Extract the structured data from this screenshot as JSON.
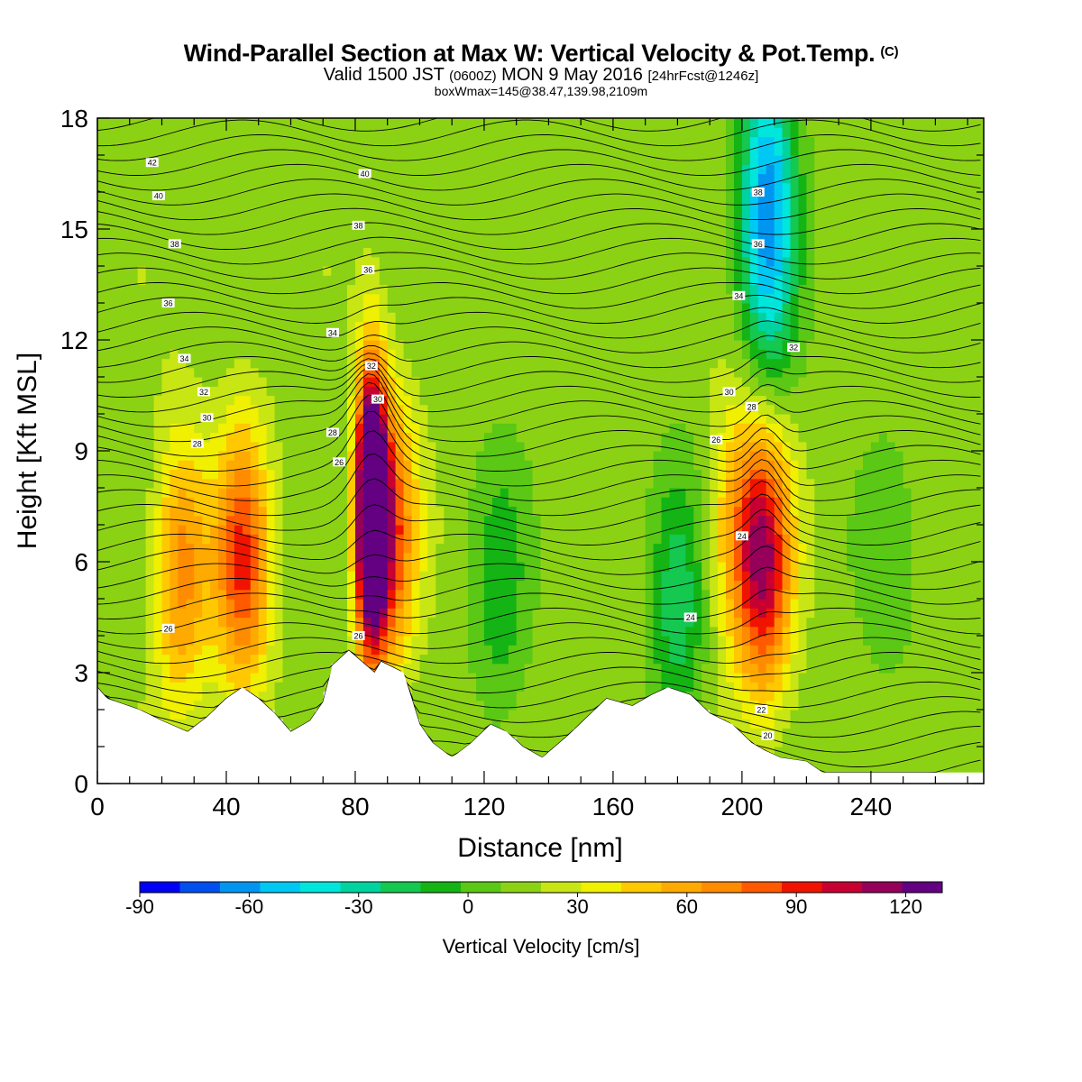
{
  "header": {
    "title": "Wind-Parallel Section at Max W: Vertical Velocity & Pot.Temp.",
    "copyright_mark": "(C)",
    "valid_prefix": "Valid 1500 JST",
    "utc_time": "(0600Z)",
    "valid_date": "MON 9 May 2016",
    "forecast_info": "[24hrFcst@1246z]",
    "boxinfo": "boxWmax=145@38.47,139.98,2109m"
  },
  "chart_data": {
    "type": "heatmap",
    "xlabel": "Distance [nm]",
    "ylabel": "Height [Kft MSL]",
    "xlim": [
      0,
      275
    ],
    "ylim": [
      0,
      18
    ],
    "xticks": [
      "0",
      "40",
      "80",
      "120",
      "160",
      "200",
      "240"
    ],
    "yticks": [
      "0",
      "3",
      "6",
      "9",
      "12",
      "15",
      "18"
    ],
    "colorbar": {
      "label": "Vertical Velocity [cm/s]",
      "range": [
        -90,
        130
      ],
      "step": 10,
      "tick_labels": [
        "-90",
        "-60",
        "-30",
        "0",
        "30",
        "60",
        "90",
        "120"
      ],
      "colors": [
        "#0000f5",
        "#0050f0",
        "#0096f0",
        "#00c8f5",
        "#00e6dc",
        "#00d2a0",
        "#14c850",
        "#14b414",
        "#5ac814",
        "#8cd214",
        "#c8e614",
        "#f0f000",
        "#ffc800",
        "#ffaa00",
        "#ff8c00",
        "#ff5a00",
        "#f01400",
        "#c80032",
        "#96005a",
        "#640082"
      ]
    },
    "terrain_height_kft": [
      [
        0,
        2.6
      ],
      [
        3,
        2.3
      ],
      [
        13,
        2.0
      ],
      [
        20,
        1.7
      ],
      [
        28,
        1.4
      ],
      [
        34,
        1.8
      ],
      [
        40,
        2.3
      ],
      [
        45,
        2.6
      ],
      [
        50,
        2.3
      ],
      [
        55,
        1.9
      ],
      [
        60,
        1.4
      ],
      [
        66,
        1.7
      ],
      [
        70,
        2.2
      ],
      [
        73,
        3.2
      ],
      [
        78,
        3.6
      ],
      [
        82,
        3.3
      ],
      [
        86,
        3.0
      ],
      [
        88,
        3.3
      ],
      [
        95,
        3.0
      ],
      [
        100,
        1.6
      ],
      [
        104,
        1.1
      ],
      [
        110,
        0.7
      ],
      [
        116,
        1.1
      ],
      [
        122,
        1.6
      ],
      [
        127,
        1.4
      ],
      [
        132,
        1.0
      ],
      [
        138,
        0.7
      ],
      [
        146,
        1.3
      ],
      [
        152,
        1.8
      ],
      [
        158,
        2.3
      ],
      [
        166,
        2.1
      ],
      [
        172,
        2.4
      ],
      [
        177,
        2.6
      ],
      [
        184,
        2.4
      ],
      [
        190,
        1.9
      ],
      [
        197,
        1.6
      ],
      [
        203,
        1.1
      ],
      [
        207,
        0.9
      ],
      [
        212,
        0.7
      ],
      [
        220,
        0.6
      ],
      [
        225,
        0.3
      ],
      [
        275,
        0.3
      ]
    ],
    "vertical_velocity_cores": [
      {
        "x": 85,
        "z": 7.5,
        "w": 145
      },
      {
        "x": 90,
        "z": 6.8,
        "w": 70
      },
      {
        "x": 45,
        "z": 6.0,
        "w": 65
      },
      {
        "x": 26,
        "z": 5.8,
        "w": 50
      },
      {
        "x": 207,
        "z": 6.0,
        "w": 80
      },
      {
        "x": 198,
        "z": 7.0,
        "w": 30
      },
      {
        "x": 180,
        "z": 4.5,
        "w": -30
      },
      {
        "x": 208,
        "z": 15.5,
        "w": -70
      },
      {
        "x": 125,
        "z": 5.0,
        "w": -20
      },
      {
        "x": 245,
        "z": 5.5,
        "w": -10
      }
    ],
    "theta_labels_c": [
      {
        "x": 17,
        "z": 16.8,
        "text": "42"
      },
      {
        "x": 19,
        "z": 15.9,
        "text": "40"
      },
      {
        "x": 24,
        "z": 14.6,
        "text": "38"
      },
      {
        "x": 22,
        "z": 13.0,
        "text": "36"
      },
      {
        "x": 27,
        "z": 11.5,
        "text": "34"
      },
      {
        "x": 33,
        "z": 10.6,
        "text": "32"
      },
      {
        "x": 34,
        "z": 9.9,
        "text": "30"
      },
      {
        "x": 31,
        "z": 9.2,
        "text": "28"
      },
      {
        "x": 22,
        "z": 4.2,
        "text": "26"
      },
      {
        "x": 81,
        "z": 4.0,
        "text": "26"
      },
      {
        "x": 83,
        "z": 16.5,
        "text": "40"
      },
      {
        "x": 81,
        "z": 15.1,
        "text": "38"
      },
      {
        "x": 84,
        "z": 13.9,
        "text": "36"
      },
      {
        "x": 73,
        "z": 12.2,
        "text": "34"
      },
      {
        "x": 85,
        "z": 11.3,
        "text": "32"
      },
      {
        "x": 87,
        "z": 10.4,
        "text": "30"
      },
      {
        "x": 73,
        "z": 9.5,
        "text": "28"
      },
      {
        "x": 75,
        "z": 8.7,
        "text": "26"
      },
      {
        "x": 205,
        "z": 14.6,
        "text": "36"
      },
      {
        "x": 205,
        "z": 16.0,
        "text": "38"
      },
      {
        "x": 199,
        "z": 13.2,
        "text": "34"
      },
      {
        "x": 216,
        "z": 11.8,
        "text": "32"
      },
      {
        "x": 196,
        "z": 10.6,
        "text": "30"
      },
      {
        "x": 203,
        "z": 10.2,
        "text": "28"
      },
      {
        "x": 192,
        "z": 9.3,
        "text": "26"
      },
      {
        "x": 200,
        "z": 6.7,
        "text": "24"
      },
      {
        "x": 184,
        "z": 4.5,
        "text": "24"
      },
      {
        "x": 206,
        "z": 2.0,
        "text": "22"
      },
      {
        "x": 208,
        "z": 1.3,
        "text": "20"
      }
    ]
  }
}
